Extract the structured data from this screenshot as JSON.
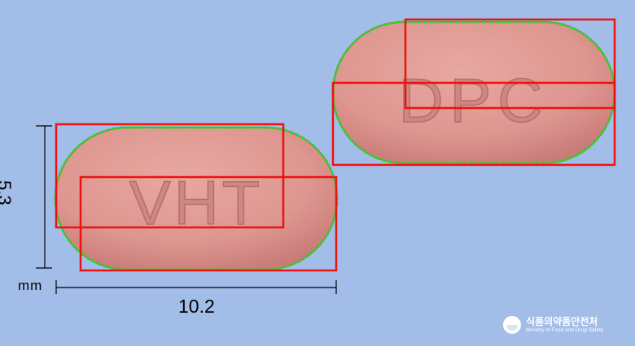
{
  "image": {
    "pill_front_imprint": "VHT",
    "pill_back_imprint": "DPC",
    "dimension_height": "5.3",
    "dimension_unit": "mm",
    "dimension_width": "10.2",
    "logo_korean": "식품의약품안전처",
    "logo_english": "Ministry of Food and Drug Safety"
  },
  "colors": {
    "background": "#a2bde8",
    "pill_fill": "#de9690",
    "pill_edge": "#c87b78",
    "contour": "#22dd22",
    "box": "#ee1111"
  }
}
